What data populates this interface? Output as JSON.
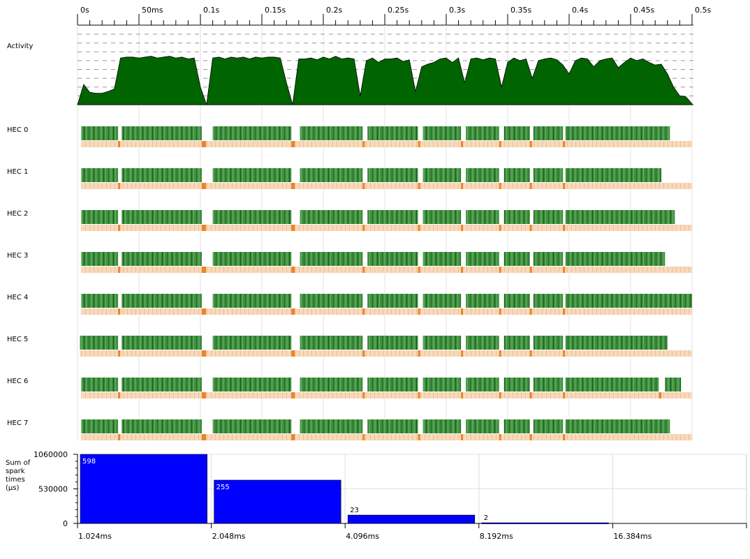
{
  "timeline": {
    "xlim": [
      0,
      500
    ],
    "xticks": [
      {
        "value": 0,
        "label": "0s"
      },
      {
        "value": 50,
        "label": "50ms"
      },
      {
        "value": 100,
        "label": "0.1s"
      },
      {
        "value": 150,
        "label": "0.15s"
      },
      {
        "value": 200,
        "label": "0.2s"
      },
      {
        "value": 250,
        "label": "0.25s"
      },
      {
        "value": 300,
        "label": "0.3s"
      },
      {
        "value": 350,
        "label": "0.35s"
      },
      {
        "value": 400,
        "label": "0.4s"
      },
      {
        "value": 450,
        "label": "0.45s"
      },
      {
        "value": 500,
        "label": "0.5s"
      }
    ],
    "xminorticks": [
      10,
      20,
      30,
      40,
      60,
      70,
      80,
      90,
      110,
      120,
      130,
      140,
      160,
      170,
      180,
      190,
      210,
      220,
      230,
      240,
      260,
      270,
      280,
      290,
      310,
      320,
      330,
      340,
      360,
      370,
      380,
      390,
      410,
      420,
      430,
      440,
      460,
      470,
      480,
      490
    ]
  },
  "activity": {
    "label": "Activity",
    "ylim": [
      0,
      8
    ],
    "yticks": [
      1,
      2,
      3,
      4,
      5,
      6,
      7,
      8
    ],
    "color": "#006400",
    "x": [
      0,
      5,
      10,
      15,
      20,
      25,
      30,
      35,
      40,
      45,
      50,
      55,
      60,
      65,
      70,
      75,
      80,
      85,
      90,
      95,
      100,
      105,
      110,
      115,
      120,
      125,
      130,
      135,
      140,
      145,
      150,
      155,
      160,
      165,
      170,
      175,
      180,
      185,
      190,
      195,
      200,
      205,
      210,
      215,
      220,
      225,
      230,
      235,
      240,
      245,
      250,
      255,
      260,
      265,
      270,
      275,
      280,
      285,
      290,
      295,
      300,
      305,
      310,
      315,
      320,
      325,
      330,
      335,
      340,
      345,
      350,
      355,
      360,
      365,
      370,
      375,
      380,
      385,
      390,
      395,
      400,
      405,
      410,
      415,
      420,
      425,
      430,
      435,
      440,
      445,
      450,
      455,
      460,
      465,
      470,
      475,
      480,
      485,
      490,
      495,
      500
    ],
    "values": [
      0,
      2.3,
      1.4,
      1.3,
      1.3,
      1.5,
      1.8,
      5.3,
      5.4,
      5.4,
      5.3,
      5.4,
      5.5,
      5.3,
      5.4,
      5.5,
      5.3,
      5.4,
      5.2,
      5.3,
      2.0,
      0,
      5.3,
      5.4,
      5.2,
      5.4,
      5.3,
      5.4,
      5.2,
      5.4,
      5.3,
      5.4,
      5.4,
      5.3,
      2.5,
      0,
      5.2,
      5.2,
      5.3,
      5.1,
      5.4,
      5.2,
      5.5,
      5.2,
      5.3,
      5.2,
      1.0,
      5.0,
      5.3,
      4.8,
      5.2,
      5.2,
      5.3,
      4.9,
      5.1,
      1.5,
      4.3,
      4.6,
      4.8,
      5.2,
      5.3,
      4.8,
      5.3,
      2.5,
      5.2,
      5.3,
      5.1,
      5.3,
      5.2,
      2.0,
      4.8,
      5.3,
      5.0,
      5.2,
      3.0,
      5.0,
      5.2,
      5.3,
      5.1,
      4.5,
      3.5,
      5.0,
      5.3,
      5.2,
      4.3,
      5.0,
      5.2,
      5.3,
      4.2,
      4.8,
      5.3,
      5.0,
      5.2,
      4.8,
      4.5,
      4.6,
      3.5,
      2.0,
      1.0,
      0.9,
      0.1
    ]
  },
  "hecs": [
    {
      "label": "HEC 0",
      "segments": [
        [
          3,
          33
        ],
        [
          36,
          101
        ],
        [
          110,
          174
        ],
        [
          181,
          232
        ],
        [
          236,
          277
        ],
        [
          281,
          312
        ],
        [
          316,
          343
        ],
        [
          347,
          368
        ],
        [
          371,
          395
        ],
        [
          397,
          482
        ]
      ]
    },
    {
      "label": "HEC 1",
      "segments": [
        [
          3,
          33
        ],
        [
          36,
          101
        ],
        [
          110,
          174
        ],
        [
          181,
          232
        ],
        [
          236,
          277
        ],
        [
          281,
          312
        ],
        [
          316,
          343
        ],
        [
          347,
          368
        ],
        [
          371,
          395
        ],
        [
          397,
          475
        ]
      ]
    },
    {
      "label": "HEC 2",
      "segments": [
        [
          3,
          33
        ],
        [
          36,
          101
        ],
        [
          110,
          174
        ],
        [
          181,
          232
        ],
        [
          236,
          277
        ],
        [
          281,
          312
        ],
        [
          316,
          343
        ],
        [
          347,
          368
        ],
        [
          371,
          395
        ],
        [
          397,
          486
        ]
      ]
    },
    {
      "label": "HEC 3",
      "segments": [
        [
          3,
          33
        ],
        [
          36,
          101
        ],
        [
          110,
          174
        ],
        [
          181,
          232
        ],
        [
          236,
          277
        ],
        [
          281,
          312
        ],
        [
          316,
          343
        ],
        [
          347,
          368
        ],
        [
          371,
          395
        ],
        [
          397,
          478
        ]
      ]
    },
    {
      "label": "HEC 4",
      "segments": [
        [
          3,
          33
        ],
        [
          36,
          101
        ],
        [
          110,
          174
        ],
        [
          181,
          232
        ],
        [
          236,
          277
        ],
        [
          281,
          312
        ],
        [
          316,
          343
        ],
        [
          347,
          368
        ],
        [
          371,
          395
        ],
        [
          397,
          500
        ]
      ]
    },
    {
      "label": "HEC 5",
      "segments": [
        [
          2,
          33
        ],
        [
          36,
          101
        ],
        [
          110,
          174
        ],
        [
          181,
          232
        ],
        [
          236,
          277
        ],
        [
          281,
          312
        ],
        [
          316,
          343
        ],
        [
          347,
          368
        ],
        [
          371,
          395
        ],
        [
          397,
          480
        ]
      ]
    },
    {
      "label": "HEC 6",
      "segments": [
        [
          3,
          33
        ],
        [
          36,
          101
        ],
        [
          110,
          174
        ],
        [
          181,
          232
        ],
        [
          236,
          277
        ],
        [
          281,
          312
        ],
        [
          316,
          343
        ],
        [
          347,
          368
        ],
        [
          371,
          395
        ],
        [
          397,
          473
        ],
        [
          478,
          491
        ]
      ]
    },
    {
      "label": "HEC 7",
      "segments": [
        [
          3,
          33
        ],
        [
          36,
          101
        ],
        [
          110,
          174
        ],
        [
          181,
          232
        ],
        [
          236,
          277
        ],
        [
          281,
          312
        ],
        [
          316,
          343
        ],
        [
          347,
          368
        ],
        [
          371,
          395
        ],
        [
          397,
          482
        ]
      ]
    }
  ],
  "histogram": {
    "type": "bar",
    "ylabel": "Sum of spark times (µs)",
    "color": "#0000ff",
    "log_x": true,
    "xlim": [
      1.024,
      32.768
    ],
    "ylim": [
      0,
      1060000
    ],
    "yticks": [
      0,
      530000,
      1060000
    ],
    "bins": [
      1.024,
      2.048,
      4.096,
      8.192,
      16.384
    ],
    "xticks": [
      {
        "value": 1.024,
        "label": "1.024ms"
      },
      {
        "value": 2.048,
        "label": "2.048ms"
      },
      {
        "value": 4.096,
        "label": "4.096ms"
      },
      {
        "value": 8.192,
        "label": "8.192ms"
      },
      {
        "value": 16.384,
        "label": "16.384ms"
      }
    ],
    "values": [
      1060000,
      664000,
      128000,
      10000
    ],
    "counts": [
      598,
      255,
      23,
      2
    ]
  }
}
